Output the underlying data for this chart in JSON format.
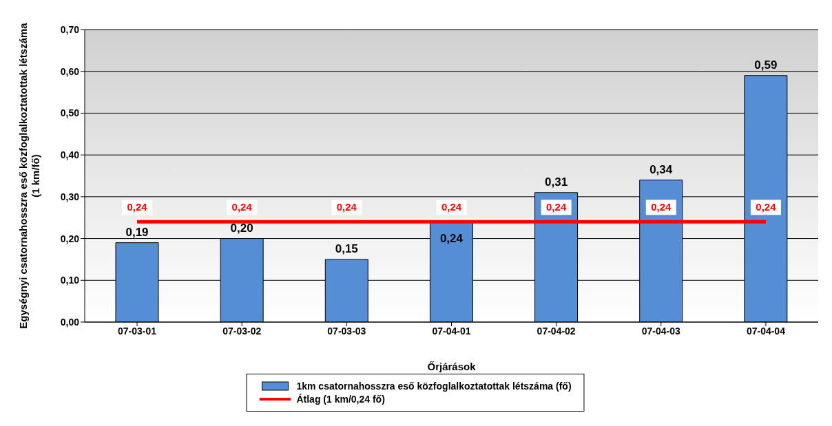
{
  "chart_data": {
    "type": "bar",
    "xlabel": "Őrjárások",
    "ylabel": "Egységnyi csatornahosszra eső közfoglalkoztatottak létszáma (1 km/fő)",
    "categories": [
      "07-03-01",
      "07-03-02",
      "07-03-03",
      "07-04-01",
      "07-04-02",
      "07-04-03",
      "07-04-04"
    ],
    "series": [
      {
        "name": "1km csatornahosszra eső közfoglalkoztatottak létszáma (fő)",
        "color": "#558ed5",
        "values": [
          0.19,
          0.2,
          0.15,
          0.24,
          0.31,
          0.34,
          0.59
        ],
        "value_labels": [
          "0,19",
          "0,20",
          "0,15",
          "0,24",
          "0,31",
          "0,34",
          "0,59"
        ]
      },
      {
        "name": "Átlag (1 km/0,24 fő)",
        "type": "line",
        "color": "#ff0000",
        "values": [
          0.24,
          0.24,
          0.24,
          0.24,
          0.24,
          0.24,
          0.24
        ],
        "value_labels": [
          "0,24",
          "0,24",
          "0,24",
          "0,24",
          "0,24",
          "0,24",
          "0,24"
        ]
      }
    ],
    "ylim": [
      0,
      0.7
    ],
    "yticks": [
      {
        "value": 0,
        "label": "0,00"
      },
      {
        "value": 0.1,
        "label": "0,10"
      },
      {
        "value": 0.2,
        "label": "0,20"
      },
      {
        "value": 0.3,
        "label": "0,30"
      },
      {
        "value": 0.4,
        "label": "0,40"
      },
      {
        "value": 0.5,
        "label": "0,50"
      },
      {
        "value": 0.6,
        "label": "0,60"
      },
      {
        "value": 0.7,
        "label": "0,70"
      }
    ],
    "grid": "y",
    "legend": "bottom",
    "marker": "none",
    "line_style": "solid"
  }
}
